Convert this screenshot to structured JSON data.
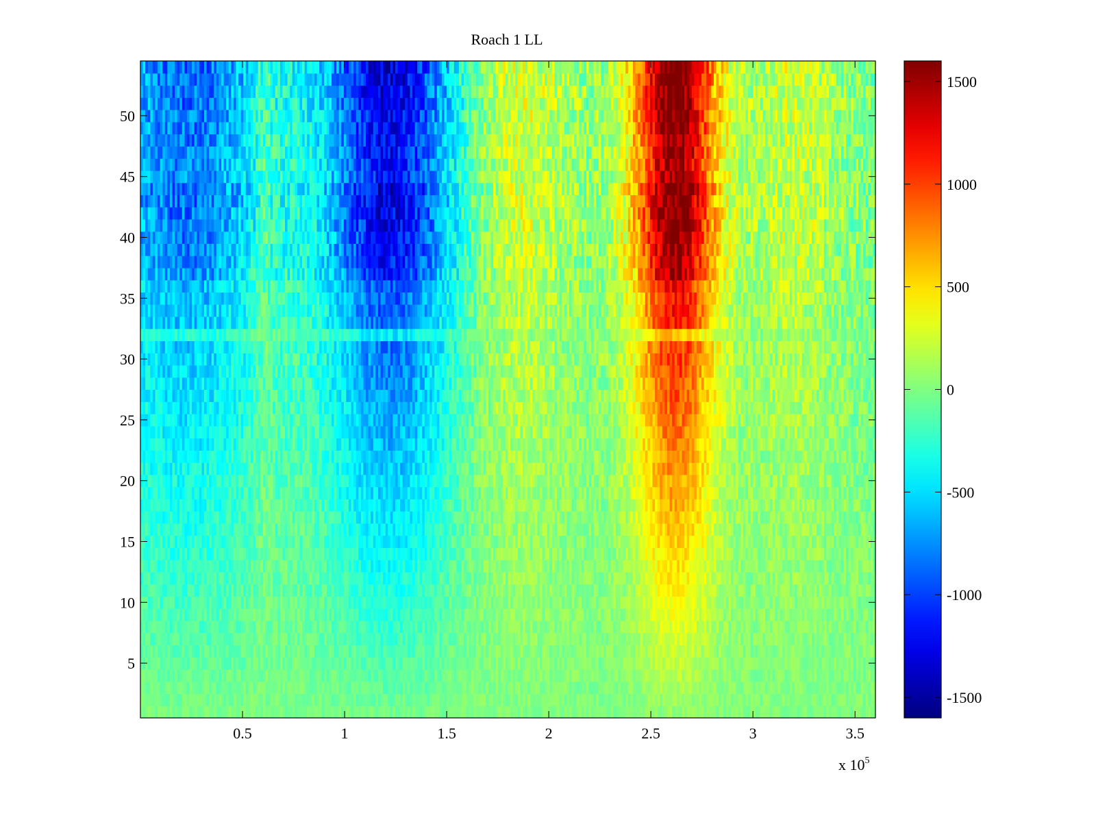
{
  "chart_data": {
    "type": "heatmap",
    "title": "Roach 1 LL",
    "xlabel": "",
    "ylabel": "",
    "x_multiplier_label": "x 10",
    "x_multiplier_exponent": "5",
    "xlim": [
      0,
      3.6
    ],
    "ylim": [
      0.5,
      54.5
    ],
    "x_ticks": [
      0.5,
      1,
      1.5,
      2,
      2.5,
      3,
      3.5
    ],
    "x_tick_labels": [
      "0.5",
      "1",
      "1.5",
      "2",
      "2.5",
      "3",
      "3.5"
    ],
    "y_ticks": [
      5,
      10,
      15,
      20,
      25,
      30,
      35,
      40,
      45,
      50
    ],
    "y_tick_labels": [
      "5",
      "10",
      "15",
      "20",
      "25",
      "30",
      "35",
      "40",
      "45",
      "50"
    ],
    "rows": 54,
    "colormap": "jet",
    "clim": [
      -1600,
      1600
    ],
    "colorbar": {
      "ticks": [
        -1500,
        -1000,
        -500,
        0,
        500,
        1000,
        1500
      ],
      "tick_labels": [
        "-1500",
        "-1000",
        "-500",
        "0",
        "500",
        "1000",
        "1500"
      ]
    },
    "features": [
      {
        "description": "negative band",
        "x_range": [
          0.0,
          0.6
        ],
        "peak_value": -1000,
        "row_range": [
          25,
          54
        ]
      },
      {
        "description": "negative band",
        "x_range": [
          0.87,
          1.55
        ],
        "peak_value": -1400,
        "row_range": [
          12,
          54
        ]
      },
      {
        "description": "positive band",
        "x_range": [
          2.35,
          2.9
        ],
        "peak_value": 1600,
        "row_range": [
          3,
          54
        ]
      }
    ]
  }
}
